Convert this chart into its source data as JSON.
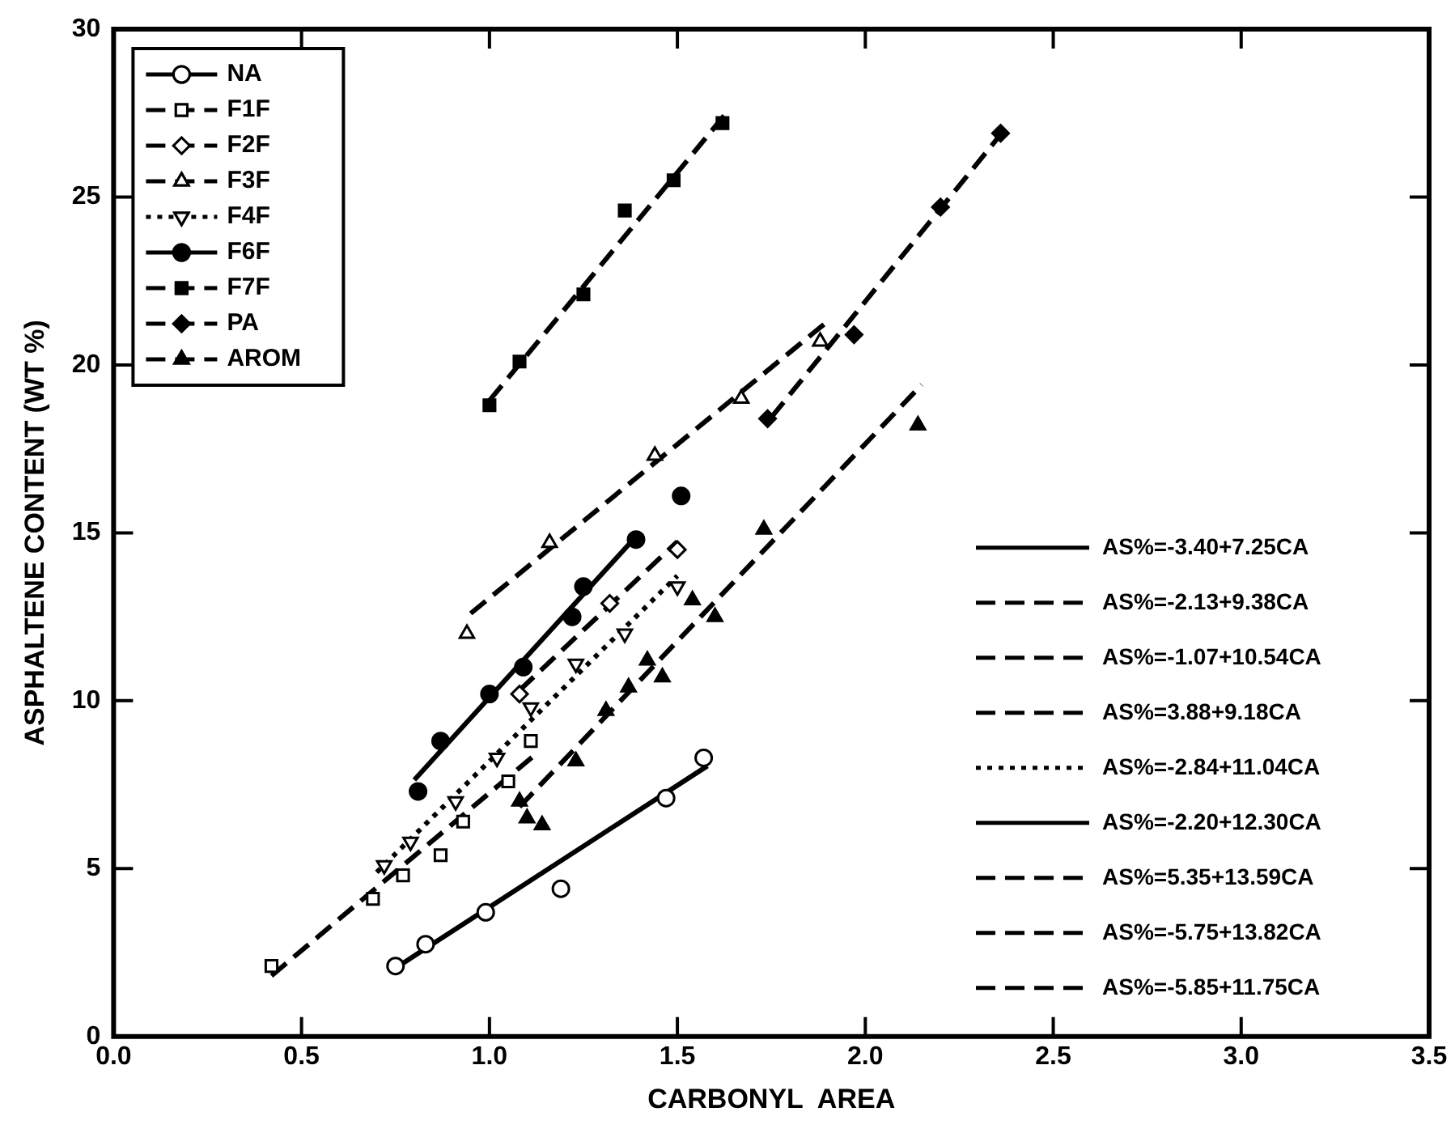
{
  "chart_data": {
    "type": "scatter",
    "xlabel": "CARBONYL  AREA",
    "ylabel": "ASPHALTENE CONTENT (WT %)",
    "xlim": [
      0,
      3.5
    ],
    "xticks": [
      {
        "value": 0,
        "label": "0.0"
      },
      0.5,
      {
        "value": 1,
        "label": "1.0"
      },
      1.5,
      {
        "value": 2,
        "label": "2.0"
      },
      2.5,
      {
        "value": 3,
        "label": "3.0"
      },
      3.5
    ],
    "ylim": [
      0,
      30
    ],
    "yticks": [
      0,
      5,
      10,
      15,
      20,
      25,
      30
    ],
    "grid": false,
    "legend": "top left",
    "series": [
      {
        "name": "NA",
        "marker": "circle",
        "color": "#ffffff",
        "x": [
          0.75,
          0.83,
          0.99,
          1.19,
          1.47,
          1.57
        ],
        "values": [
          2.1,
          2.75,
          3.7,
          4.4,
          7.1,
          8.3
        ]
      },
      {
        "name": "F1F",
        "marker": "square",
        "color": "#ffffff",
        "x": [
          0.42,
          0.69,
          0.77,
          0.87,
          0.93,
          1.05,
          1.11
        ],
        "values": [
          2.1,
          4.1,
          4.8,
          5.4,
          6.4,
          7.6,
          8.8
        ]
      },
      {
        "name": "F2F",
        "marker": "diamond",
        "color": "#ffffff",
        "x": [
          1.08,
          1.32,
          1.5
        ],
        "values": [
          10.2,
          12.9,
          14.5
        ]
      },
      {
        "name": "F3F",
        "marker": "triangle",
        "color": "#ffffff",
        "x": [
          0.94,
          1.16,
          1.44,
          1.67,
          1.88
        ],
        "values": [
          12.0,
          14.7,
          17.3,
          19.0,
          20.7
        ]
      },
      {
        "name": "F4F",
        "marker": "triangle-down",
        "color": "#ffffff",
        "x": [
          0.72,
          0.79,
          0.91,
          1.02,
          1.11,
          1.23,
          1.36,
          1.5
        ],
        "values": [
          5.1,
          5.8,
          7.0,
          8.3,
          9.8,
          11.1,
          12.0,
          13.4
        ]
      },
      {
        "name": "F6F",
        "marker": "circle",
        "color": "#000000",
        "x": [
          0.81,
          0.87,
          1.0,
          1.09,
          1.22,
          1.25,
          1.39,
          1.51
        ],
        "values": [
          7.3,
          8.8,
          10.2,
          11.0,
          12.5,
          13.4,
          14.8,
          16.1
        ]
      },
      {
        "name": "F7F",
        "marker": "square",
        "color": "#000000",
        "x": [
          1.0,
          1.08,
          1.25,
          1.36,
          1.49,
          1.62
        ],
        "values": [
          18.8,
          20.1,
          22.1,
          24.6,
          25.5,
          27.2
        ]
      },
      {
        "name": "PA",
        "marker": "diamond",
        "color": "#000000",
        "x": [
          1.74,
          1.97,
          2.2,
          2.36
        ],
        "values": [
          18.4,
          20.9,
          24.7,
          26.9
        ]
      },
      {
        "name": "AROM",
        "marker": "triangle",
        "color": "#000000",
        "x": [
          1.08,
          1.1,
          1.14,
          1.23,
          1.31,
          1.37,
          1.42,
          1.46,
          1.54,
          1.6,
          1.73,
          2.14
        ],
        "values": [
          7.0,
          6.5,
          6.3,
          8.2,
          9.7,
          10.4,
          11.2,
          10.7,
          13.0,
          12.5,
          15.1,
          18.2
        ]
      },
      {
        "name": "AS%=-3.40+7.25CA",
        "type": "line",
        "line_style": "solid",
        "color": "#000000",
        "x": [
          0.75,
          1.58
        ],
        "values": [
          2.04,
          8.06
        ]
      },
      {
        "name": "AS%=-2.13+9.38CA",
        "type": "line",
        "line_style": "dashed",
        "color": "#000000",
        "x": [
          0.42,
          1.12
        ],
        "values": [
          1.81,
          8.38
        ]
      },
      {
        "name": "AS%=-1.07+10.54CA",
        "type": "line",
        "line_style": "dashed",
        "color": "#000000",
        "x": [
          1.08,
          1.5
        ],
        "values": [
          10.31,
          14.74
        ]
      },
      {
        "name": "AS%=3.88+9.18CA",
        "type": "line",
        "line_style": "dashed",
        "color": "#000000",
        "x": [
          0.95,
          1.9
        ],
        "values": [
          12.6,
          21.3
        ]
      },
      {
        "name": "AS%=-2.84+11.04CA",
        "type": "line",
        "line_style": "dotted",
        "color": "#000000",
        "x": [
          0.7,
          1.5
        ],
        "values": [
          4.89,
          13.72
        ]
      },
      {
        "name": "AS%=-2.20+12.30CA",
        "type": "line",
        "line_style": "solid",
        "color": "#000000",
        "x": [
          0.8,
          1.38
        ],
        "values": [
          7.64,
          14.77
        ]
      },
      {
        "name": "AS%=5.35+13.59CA",
        "type": "line",
        "line_style": "dashed",
        "color": "#000000",
        "x": [
          1.0,
          1.63
        ],
        "values": [
          18.94,
          27.5
        ]
      },
      {
        "name": "AS%=-5.75+13.82CA",
        "type": "line",
        "line_style": "dashed",
        "color": "#000000",
        "x": [
          1.75,
          2.37
        ],
        "values": [
          18.44,
          27.0
        ]
      },
      {
        "name": "AS%=-5.85+11.75CA",
        "type": "line",
        "line_style": "dashed",
        "color": "#000000",
        "x": [
          1.08,
          2.15
        ],
        "values": [
          6.84,
          19.41
        ]
      }
    ]
  }
}
